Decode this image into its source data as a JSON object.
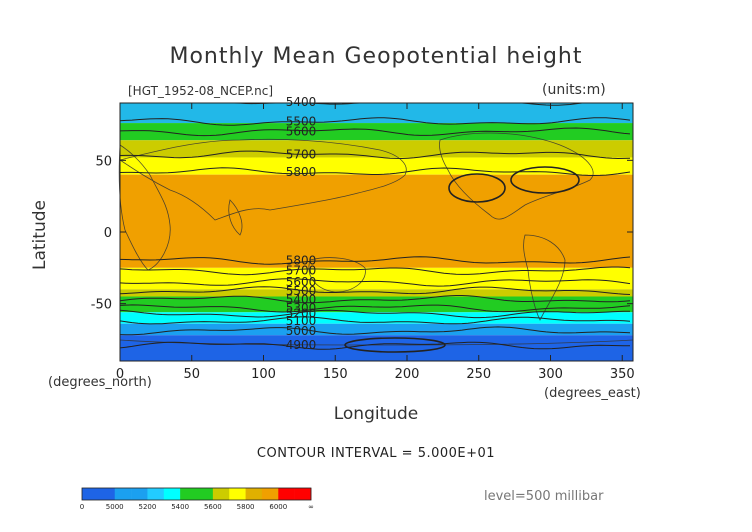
{
  "chart_data": {
    "type": "heatmap",
    "title": "Monthly Mean Geopotential height",
    "file": "[HGT_1952-08_NCEP.nc]",
    "units": "(units:m)",
    "xlabel": "Longitude",
    "ylabel": "Latitude",
    "x_unit": "(degrees_north)",
    "x_unit_east": "(degrees_east)",
    "xlim": [
      0,
      357.5
    ],
    "ylim": [
      -90,
      90
    ],
    "xticks": [
      0,
      50,
      100,
      150,
      200,
      250,
      300,
      350
    ],
    "yticks": [
      50,
      0,
      -50
    ],
    "contour_interval": "CONTOUR INTERVAL = 5.000E+01",
    "level": "level=500 millibar",
    "bands": [
      {
        "from": 90,
        "to": 76,
        "color": "#22b8e8",
        "range": "5400-5600"
      },
      {
        "from": 76,
        "to": 64,
        "color": "#22cc22",
        "range": "5400-5600"
      },
      {
        "from": 64,
        "to": 52,
        "color": "#cccc00",
        "range": "5600-5800"
      },
      {
        "from": 52,
        "to": 40,
        "color": "#ffff00",
        "range": "5600-5800"
      },
      {
        "from": 40,
        "to": -25,
        "color": "#f0a000",
        "range": "5800-6000"
      },
      {
        "from": -25,
        "to": -40,
        "color": "#ffff00",
        "range": "5600-5800"
      },
      {
        "from": -40,
        "to": -45,
        "color": "#cccc00",
        "range": "5600-5800"
      },
      {
        "from": -45,
        "to": -56,
        "color": "#22cc22",
        "range": "5400-5600"
      },
      {
        "from": -56,
        "to": -64,
        "color": "#00ffff",
        "range": "5200-5400"
      },
      {
        "from": -64,
        "to": -72,
        "color": "#1ba0f0",
        "range": "5000-5200"
      },
      {
        "from": -72,
        "to": -90,
        "color": "#1e64e6",
        "range": "0-5000"
      }
    ],
    "contours": [
      {
        "label": "5400",
        "lat": 91
      },
      {
        "label": "5500",
        "lat": 77
      },
      {
        "label": "5600",
        "lat": 70
      },
      {
        "label": "5700",
        "lat": 54
      },
      {
        "label": "5800",
        "lat": 42
      },
      {
        "label": "5800",
        "lat": -20
      },
      {
        "label": "5700",
        "lat": -27
      },
      {
        "label": "5600",
        "lat": -35
      },
      {
        "label": "5500",
        "lat": -41
      },
      {
        "label": "5400",
        "lat": -47
      },
      {
        "label": "5300",
        "lat": -53
      },
      {
        "label": "5200",
        "lat": -57
      },
      {
        "label": "5100",
        "lat": -62
      },
      {
        "label": "5000",
        "lat": -69
      },
      {
        "label": "4900",
        "lat": -79
      }
    ],
    "colorbar": {
      "colors": [
        "#1e64e6",
        "#1e64e6",
        "#1ba0f0",
        "#1ba0f0",
        "#22ccff",
        "#00ffff",
        "#22cc22",
        "#22cc22",
        "#cccc00",
        "#ffff00",
        "#e0b000",
        "#f0a000",
        "#ff0000",
        "#ff0000"
      ],
      "labels": [
        "0",
        "5000",
        "5200",
        "5400",
        "5600",
        "5800",
        "6000",
        "∞"
      ]
    }
  }
}
